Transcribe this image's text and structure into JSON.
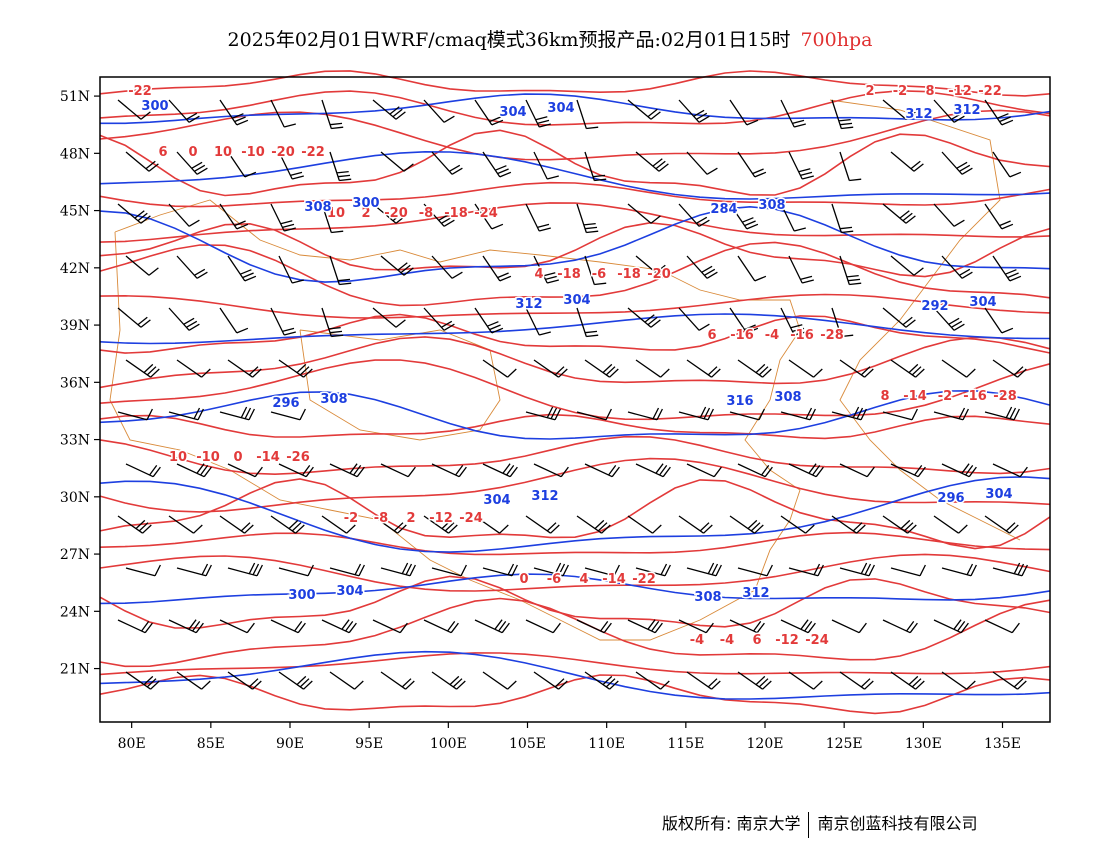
{
  "title": {
    "main": "2025年02月01日WRF/cmaq模式36km预报产品:02月01日15时",
    "level": "700hpa"
  },
  "colors": {
    "temperature": "#e23a3a",
    "height": "#1d3fe0",
    "border": "#d98a3a",
    "wind": "#000000"
  },
  "map": {
    "lon_range": [
      78,
      138
    ],
    "lat_range": [
      18.2,
      52
    ],
    "lon_ticks": [
      "80E",
      "85E",
      "90E",
      "95E",
      "100E",
      "105E",
      "110E",
      "115E",
      "120E",
      "125E",
      "130E",
      "135E"
    ],
    "lat_ticks": [
      "21N",
      "24N",
      "27N",
      "30N",
      "33N",
      "36N",
      "39N",
      "42N",
      "45N",
      "48N",
      "51N"
    ]
  },
  "temperature_labels": [
    "-22",
    "-22",
    "-24",
    "-20",
    "-28",
    "-28",
    "-26",
    "-24",
    "-22",
    "-24",
    "-22",
    "-20",
    "-18",
    "-18",
    "-16",
    "-16",
    "-14",
    "-12",
    "-14",
    "-12",
    "-12",
    "-10",
    "-8",
    "-6",
    "-4",
    "-2",
    "0",
    "2",
    "4",
    "6",
    "8",
    "10",
    "-20",
    "-18",
    "-16",
    "-14",
    "-10",
    "-8",
    "-6",
    "-4",
    "-2",
    "0",
    "2",
    "4",
    "6",
    "8",
    "10",
    "-2",
    "0",
    "-4",
    "2",
    "6",
    "10"
  ],
  "height_labels": [
    "300",
    "300",
    "304",
    "308",
    "304",
    "304",
    "304",
    "308",
    "304",
    "308",
    "312",
    "312",
    "312",
    "308",
    "312",
    "316",
    "296",
    "300",
    "304",
    "284",
    "292",
    "296",
    "304",
    "308",
    "312"
  ],
  "copyright": {
    "left": "版权所有: 南京大学",
    "right": "南京创蓝科技有限公司"
  }
}
